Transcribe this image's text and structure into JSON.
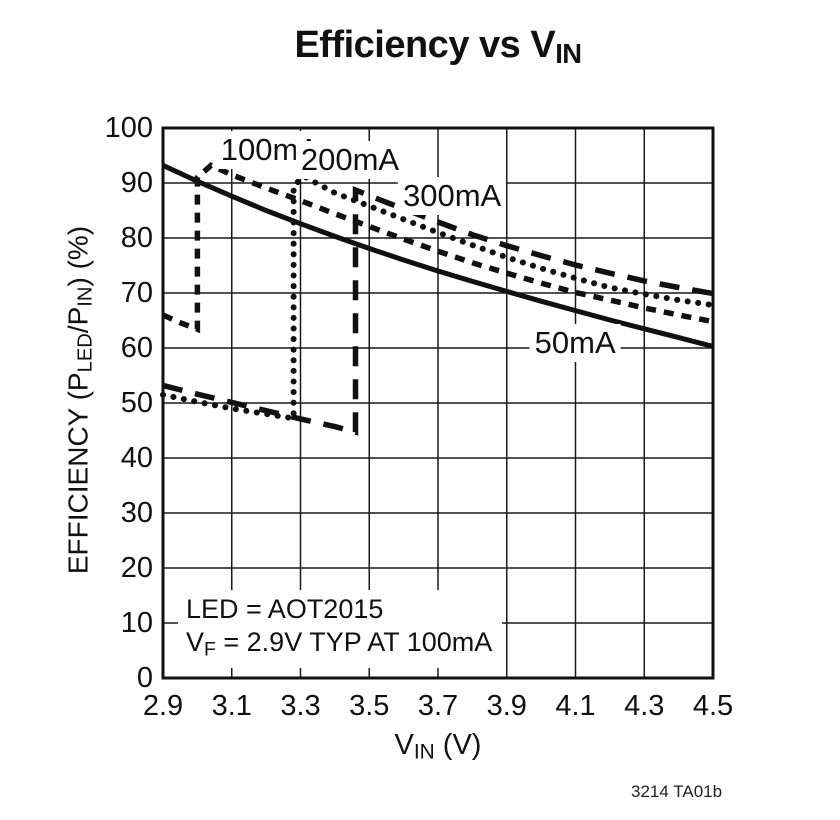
{
  "title": {
    "main": "Efficiency vs V",
    "sub": "IN"
  },
  "axes": {
    "x": {
      "label_main": "V",
      "label_sub": "IN",
      "label_rest": " (V)",
      "ticks": [
        "2.9",
        "3.1",
        "3.3",
        "3.5",
        "3.7",
        "3.9",
        "4.1",
        "4.3",
        "4.5"
      ]
    },
    "y": {
      "label_p1": "EFFICIENCY (P",
      "label_s1": "LED",
      "label_p2": "/P",
      "label_s2": "IN",
      "label_p3": ") (%)",
      "ticks": [
        "100",
        "90",
        "80",
        "70",
        "60",
        "50",
        "40",
        "30",
        "20",
        "10",
        "0"
      ]
    }
  },
  "annotation_rich": {
    "line1": "LED = AOT2015",
    "line2_main": "V",
    "line2_sub": "F",
    "line2_rest": " = 2.9V TYP AT 100mA"
  },
  "credit": "3214 TA01b",
  "chart_data": {
    "type": "line",
    "title": "Efficiency vs VIN",
    "xlabel": "VIN (V)",
    "ylabel": "EFFICIENCY (PLED/PIN) (%)",
    "xlim": [
      2.9,
      4.5
    ],
    "ylim": [
      0,
      100
    ],
    "grid": true,
    "annotations": [
      "LED = AOT2015",
      "VF = 2.9V TYP AT 100mA"
    ],
    "series": [
      {
        "name": "50mA",
        "style": "solid",
        "label_pos": [
          4.099,
          60.9
        ],
        "points": [
          [
            2.9,
            93.2
          ],
          [
            3.0,
            90.3
          ],
          [
            3.1,
            87.6
          ],
          [
            3.2,
            85.0
          ],
          [
            3.3,
            82.6
          ],
          [
            3.4,
            80.3
          ],
          [
            3.5,
            78.1
          ],
          [
            3.6,
            76.0
          ],
          [
            3.7,
            74.0
          ],
          [
            3.8,
            72.1
          ],
          [
            3.9,
            70.3
          ],
          [
            4.0,
            68.5
          ],
          [
            4.1,
            66.8
          ],
          [
            4.2,
            65.1
          ],
          [
            4.3,
            63.5
          ],
          [
            4.4,
            61.9
          ],
          [
            4.5,
            60.3
          ]
        ]
      },
      {
        "name": "100mA",
        "style": "short-dash",
        "label_pos": [
          3.211,
          96.0
        ],
        "points": [
          [
            2.9,
            66.0
          ],
          [
            2.95,
            64.6
          ],
          [
            3.0,
            63.4
          ],
          [
            3.0,
            91.0
          ],
          [
            3.04,
            93.2
          ],
          [
            3.1,
            91.5
          ],
          [
            3.2,
            89.1
          ],
          [
            3.3,
            86.8
          ],
          [
            3.4,
            84.4
          ],
          [
            3.5,
            82.1
          ],
          [
            3.6,
            79.8
          ],
          [
            3.7,
            77.6
          ],
          [
            3.8,
            75.5
          ],
          [
            3.9,
            73.6
          ],
          [
            4.0,
            71.8
          ],
          [
            4.1,
            70.1
          ],
          [
            4.2,
            68.7
          ],
          [
            4.3,
            67.3
          ],
          [
            4.4,
            66.0
          ],
          [
            4.5,
            64.8
          ]
        ]
      },
      {
        "name": "200mA",
        "style": "dot",
        "label_pos": [
          3.444,
          94.2
        ],
        "points": [
          [
            2.9,
            51.5
          ],
          [
            3.0,
            50.2
          ],
          [
            3.1,
            49.0
          ],
          [
            3.2,
            48.0
          ],
          [
            3.28,
            47.2
          ],
          [
            3.28,
            89.5
          ],
          [
            3.31,
            91.2
          ],
          [
            3.4,
            88.2
          ],
          [
            3.5,
            85.8
          ],
          [
            3.6,
            83.4
          ],
          [
            3.7,
            81.0
          ],
          [
            3.8,
            78.7
          ],
          [
            3.9,
            76.5
          ],
          [
            4.0,
            74.5
          ],
          [
            4.1,
            72.7
          ],
          [
            4.2,
            71.0
          ],
          [
            4.3,
            69.8
          ],
          [
            4.4,
            68.7
          ],
          [
            4.5,
            67.8
          ]
        ]
      },
      {
        "name": "300mA",
        "style": "long-dash",
        "label_pos": [
          3.741,
          87.6
        ],
        "points": [
          [
            2.9,
            53.2
          ],
          [
            3.0,
            51.6
          ],
          [
            3.1,
            50.1
          ],
          [
            3.2,
            48.6
          ],
          [
            3.3,
            47.1
          ],
          [
            3.4,
            45.7
          ],
          [
            3.46,
            44.7
          ],
          [
            3.46,
            88.7
          ],
          [
            3.55,
            86.5
          ],
          [
            3.6,
            85.3
          ],
          [
            3.7,
            82.9
          ],
          [
            3.8,
            80.6
          ],
          [
            3.9,
            78.6
          ],
          [
            4.0,
            76.8
          ],
          [
            4.1,
            75.1
          ],
          [
            4.2,
            73.6
          ],
          [
            4.3,
            72.2
          ],
          [
            4.4,
            71.0
          ],
          [
            4.5,
            69.9
          ]
        ]
      }
    ]
  }
}
